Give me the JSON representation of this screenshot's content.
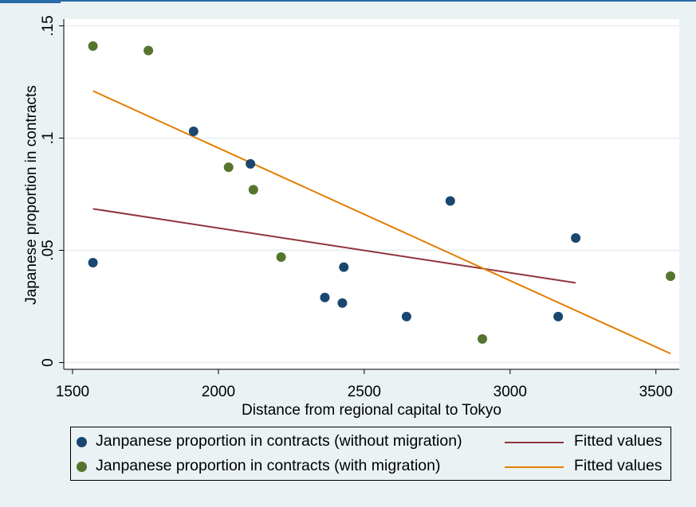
{
  "chart_data": {
    "type": "scatter",
    "xlabel": "Distance from regional capital to Tokyo",
    "ylabel": "Japanese proportion in contracts",
    "xlim": [
      1470,
      3580
    ],
    "ylim": [
      -0.003,
      0.153
    ],
    "xticks": [
      1500,
      2000,
      2500,
      3000,
      3500
    ],
    "xtick_labels": [
      "1500",
      "2000",
      "2500",
      "3000",
      "3500"
    ],
    "yticks": [
      0,
      0.05,
      0.1,
      0.15
    ],
    "ytick_labels": [
      "0",
      ".05",
      ".1",
      ".15"
    ],
    "grid": true,
    "legend_position": "bottom",
    "series": [
      {
        "name": "Janpanese proportion in contracts (without migration)",
        "kind": "scatter",
        "color": "#1a476f",
        "points": [
          [
            1570,
            0.0445
          ],
          [
            1915,
            0.103
          ],
          [
            2110,
            0.0885
          ],
          [
            2365,
            0.029
          ],
          [
            2425,
            0.0265
          ],
          [
            2430,
            0.0425
          ],
          [
            2645,
            0.0205
          ],
          [
            2795,
            0.072
          ],
          [
            3165,
            0.0205
          ],
          [
            3225,
            0.0555
          ]
        ]
      },
      {
        "name": "Janpanese proportion in contracts (with migration)",
        "kind": "scatter",
        "color": "#55752f",
        "points": [
          [
            1570,
            0.141
          ],
          [
            1760,
            0.139
          ],
          [
            2035,
            0.087
          ],
          [
            2120,
            0.077
          ],
          [
            2215,
            0.047
          ],
          [
            2905,
            0.0105
          ],
          [
            3550,
            0.0385
          ]
        ]
      },
      {
        "name": "Fitted values",
        "kind": "line",
        "color": "#90353b",
        "points": [
          [
            1570,
            0.0685
          ],
          [
            3225,
            0.0355
          ]
        ]
      },
      {
        "name": "Fitted values",
        "kind": "line",
        "color": "#e37e00",
        "points": [
          [
            1570,
            0.121
          ],
          [
            3550,
            0.004
          ]
        ]
      }
    ]
  },
  "legend": {
    "items": [
      {
        "marker_label": "Janpanese proportion in contracts (without migration)",
        "line_label": "Fitted values"
      },
      {
        "marker_label": "Janpanese proportion in contracts (with migration)",
        "line_label": "Fitted values"
      }
    ]
  }
}
